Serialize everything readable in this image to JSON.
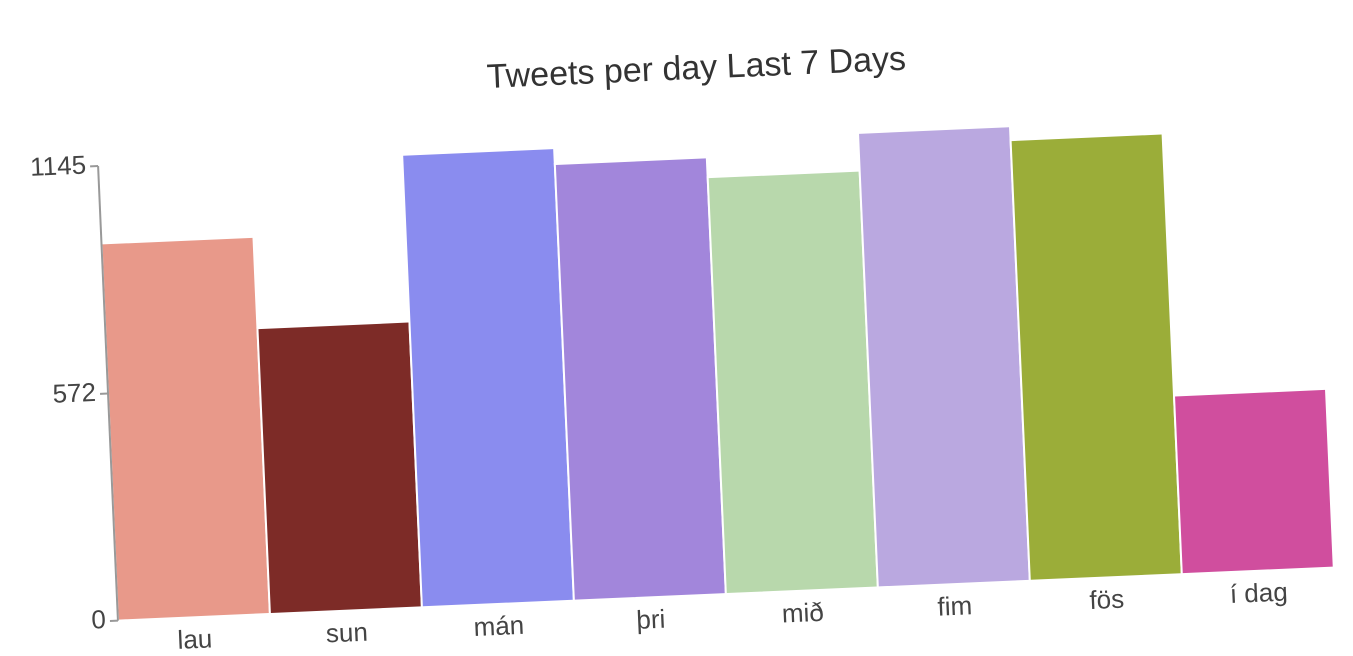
{
  "chart_data": {
    "type": "bar",
    "title": "Tweets per day Last 7 Days",
    "categories": [
      "lau",
      "sun",
      "mán",
      "þri",
      "mið",
      "fim",
      "fös",
      "í dag"
    ],
    "values": [
      950,
      720,
      1140,
      1100,
      1050,
      1145,
      1110,
      450
    ],
    "colors": [
      "#e8998a",
      "#7d2b27",
      "#8a8cef",
      "#a286db",
      "#b8d8ac",
      "#baa8e0",
      "#9bad39",
      "#d04e9e"
    ],
    "ylim": [
      0,
      1145
    ],
    "yticks": [
      0,
      572,
      1145
    ]
  }
}
